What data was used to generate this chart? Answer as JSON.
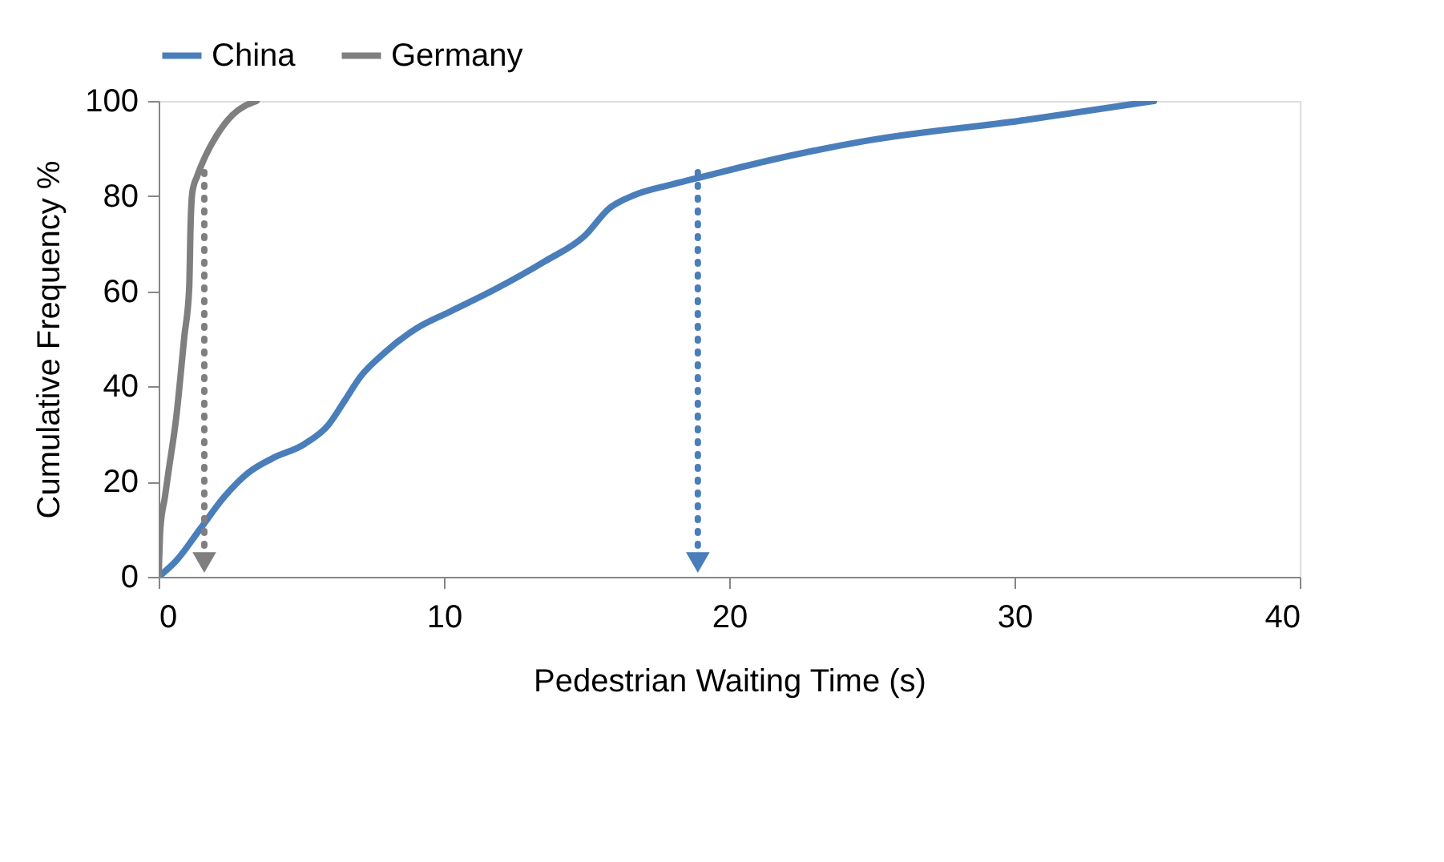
{
  "chart_data": {
    "type": "line",
    "xlabel": "Pedestrian Waiting Time (s)",
    "ylabel": "Cumulative Frequency %",
    "xlim": [
      0,
      40
    ],
    "xticks": [
      0,
      10,
      20,
      30,
      40
    ],
    "ylim": [
      0,
      100
    ],
    "yticks": [
      0,
      20,
      40,
      60,
      80,
      100
    ],
    "grid": false,
    "legend": "top",
    "line_style": "solid",
    "marker": "none",
    "series": [
      {
        "name": "China",
        "color": "#4a7ebb",
        "x": [
          0,
          0.62,
          1.46,
          2.3,
          3.15,
          3.99,
          5.11,
          5.96,
          6.52,
          7.08,
          7.92,
          9.04,
          10.17,
          11.85,
          13.54,
          14.94,
          15.79,
          16.63,
          18.03,
          19.16,
          21.4,
          24.78,
          30.39,
          34.89
        ],
        "values": [
          0,
          3.4,
          10.1,
          16.8,
          21.9,
          24.9,
          27.9,
          32,
          37,
          42.1,
          47.1,
          52.2,
          55.6,
          60.6,
          66.3,
          71.7,
          77.4,
          80.1,
          82.5,
          84.2,
          87.5,
          91.6,
          96,
          100
        ]
      },
      {
        "name": "Germany",
        "color": "#7f7f7f",
        "x": [
          0,
          0.06,
          0.22,
          0.34,
          0.62,
          0.9,
          1.07,
          1.12,
          1.18,
          1.35,
          1.57,
          2.02,
          2.58,
          3.43
        ],
        "values": [
          0,
          10.1,
          16.8,
          21.9,
          33.7,
          50.5,
          60.6,
          74.1,
          80.8,
          84.2,
          87.5,
          92.6,
          97,
          100
        ]
      },
      {
        "type": "line",
        "color": "#7f7f7f",
        "line_style": "dotted",
        "marker": "triangle",
        "x": [
          1.6,
          1.6
        ],
        "values": [
          85,
          3
        ]
      },
      {
        "type": "line",
        "color": "#4a7ebb",
        "line_style": "dotted",
        "marker": "triangle",
        "x": [
          18.9,
          18.9
        ],
        "values": [
          85,
          3
        ]
      }
    ]
  }
}
